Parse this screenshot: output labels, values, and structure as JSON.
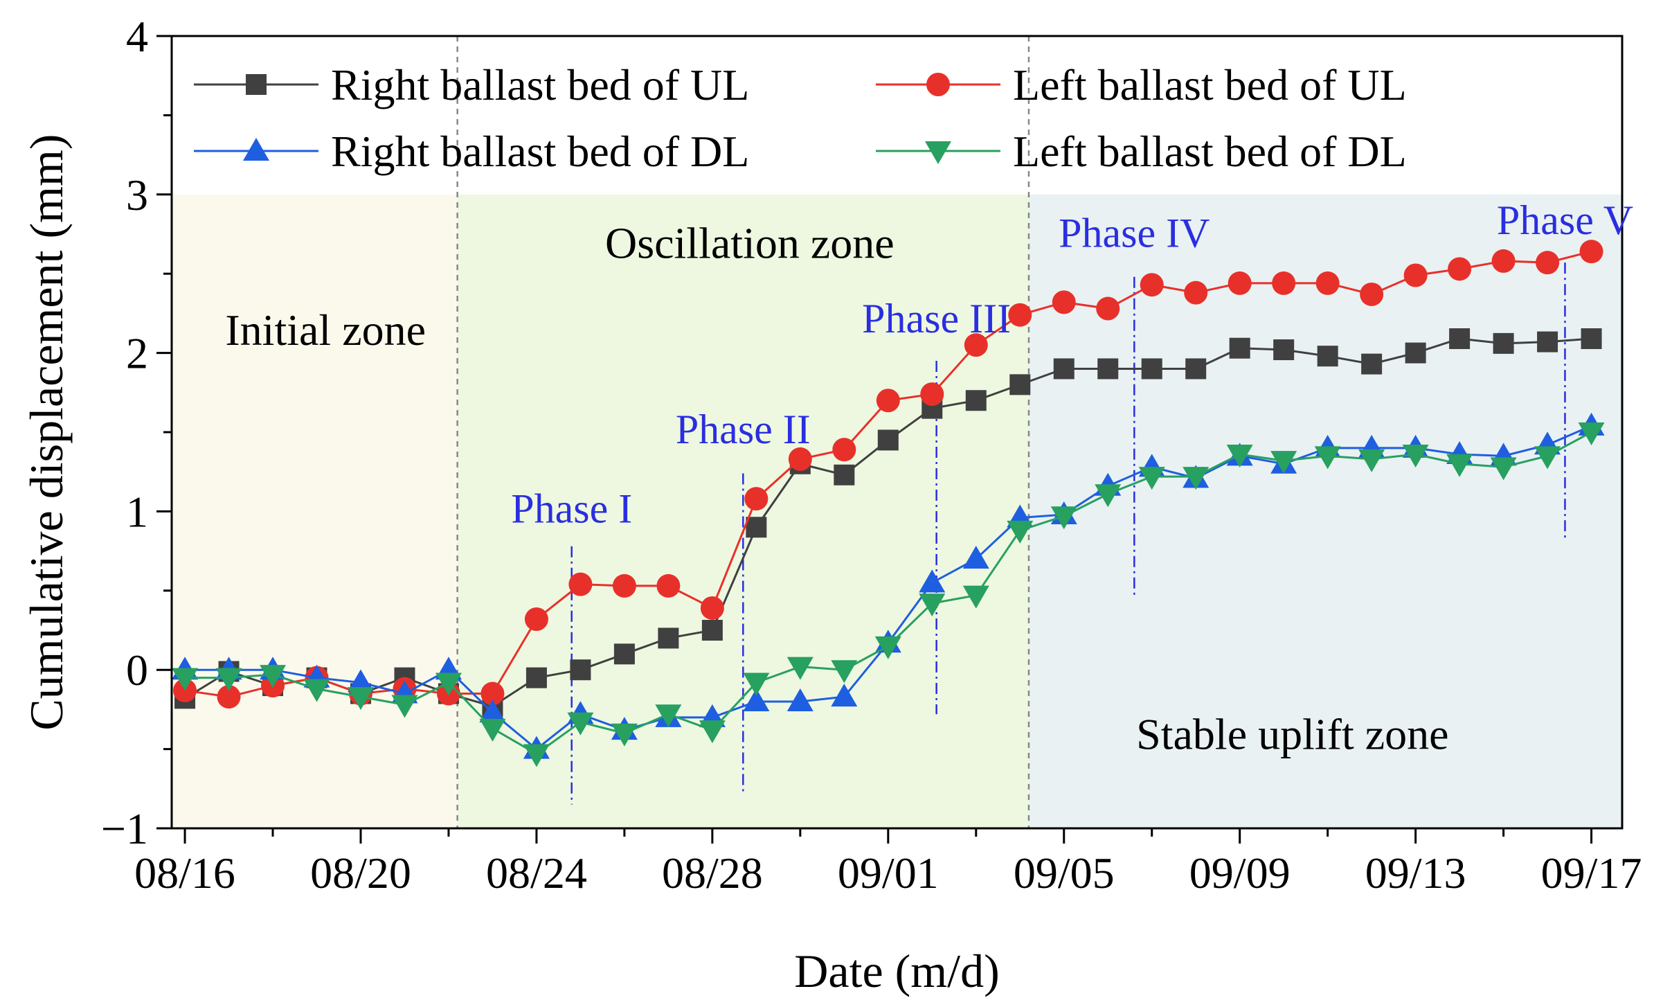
{
  "chart_data": {
    "type": "line",
    "xlabel": "Date (m/d)",
    "ylabel": "Cumulative displacement (mm)",
    "ylim": [
      -1,
      4
    ],
    "xlim": [
      -0.3,
      32.7
    ],
    "x_ticks": [
      {
        "pos": 0,
        "label": "08/16"
      },
      {
        "pos": 4,
        "label": "08/20"
      },
      {
        "pos": 8,
        "label": "08/24"
      },
      {
        "pos": 12,
        "label": "08/28"
      },
      {
        "pos": 16,
        "label": "09/01"
      },
      {
        "pos": 20,
        "label": "09/05"
      },
      {
        "pos": 24,
        "label": "09/09"
      },
      {
        "pos": 28,
        "label": "09/13"
      },
      {
        "pos": 32,
        "label": "09/17"
      }
    ],
    "y_ticks": [
      {
        "pos": -1,
        "label": "−1"
      },
      {
        "pos": 0,
        "label": "0"
      },
      {
        "pos": 1,
        "label": "1"
      },
      {
        "pos": 2,
        "label": "2"
      },
      {
        "pos": 3,
        "label": "3"
      },
      {
        "pos": 4,
        "label": "4"
      }
    ],
    "zones": [
      {
        "label": "Initial zone",
        "x0": -0.3,
        "x1": 6.2,
        "y_top": 3,
        "color": "#fbf9ec",
        "label_x": 3.2,
        "label_y": 2.05
      },
      {
        "label": "Oscillation zone",
        "x0": 6.2,
        "x1": 19.2,
        "y_top": 3,
        "color": "#eef8e0",
        "label_x": 12.85,
        "label_y": 2.6
      },
      {
        "label": "Stable uplift zone",
        "x0": 19.2,
        "x1": 32.7,
        "y_top": 3,
        "color": "#e9f1f3",
        "label_x": 25.2,
        "label_y": -0.5
      }
    ],
    "zone_dividers": [
      6.2,
      19.2
    ],
    "phases": [
      {
        "label": "Phase I",
        "x": 8.8,
        "y_top": 0.78,
        "y_bottom": -0.85,
        "label_x": 8.8,
        "label_y": 0.93
      },
      {
        "label": "Phase II",
        "x": 12.7,
        "y_top": 1.24,
        "y_bottom": -0.78,
        "label_x": 12.7,
        "label_y": 1.43
      },
      {
        "label": "Phase III",
        "x": 17.1,
        "y_top": 1.95,
        "y_bottom": -0.28,
        "label_x": 17.1,
        "label_y": 2.13
      },
      {
        "label": "Phase IV",
        "x": 21.6,
        "y_top": 2.48,
        "y_bottom": 0.47,
        "label_x": 21.6,
        "label_y": 2.67
      },
      {
        "label": "Phase V",
        "x": 31.4,
        "y_top": 2.57,
        "y_bottom": 0.83,
        "label_x": 31.4,
        "label_y": 2.75
      }
    ],
    "phase_color": "#2a2ee0",
    "x": [
      0,
      1,
      2,
      3,
      4,
      5,
      6,
      7,
      8,
      9,
      10,
      11,
      12,
      13,
      14,
      15,
      16,
      17,
      18,
      19,
      20,
      21,
      22,
      23,
      24,
      25,
      26,
      27,
      28,
      29,
      30,
      31,
      32
    ],
    "series": [
      {
        "name": "Right ballast bed of UL",
        "color": "#404040",
        "marker": "square",
        "values": [
          -0.18,
          -0.01,
          -0.1,
          -0.05,
          -0.15,
          -0.05,
          -0.15,
          -0.23,
          -0.05,
          0.0,
          0.1,
          0.2,
          0.25,
          0.9,
          1.3,
          1.23,
          1.45,
          1.65,
          1.7,
          1.8,
          1.9,
          1.9,
          1.9,
          1.9,
          2.03,
          2.02,
          1.98,
          1.93,
          2.0,
          2.09,
          2.06,
          2.07,
          2.09
        ]
      },
      {
        "name": "Left ballast bed of UL",
        "color": "#e8302a",
        "marker": "circle",
        "values": [
          -0.13,
          -0.17,
          -0.1,
          -0.05,
          -0.15,
          -0.12,
          -0.15,
          -0.15,
          0.32,
          0.54,
          0.53,
          0.53,
          0.39,
          1.08,
          1.33,
          1.39,
          1.7,
          1.74,
          2.05,
          2.24,
          2.32,
          2.28,
          2.43,
          2.38,
          2.44,
          2.44,
          2.44,
          2.37,
          2.49,
          2.53,
          2.58,
          2.57,
          2.64
        ]
      },
      {
        "name": "Right ballast bed of DL",
        "color": "#1e5ee0",
        "marker": "triangle-up",
        "values": [
          0.0,
          0.0,
          0.0,
          -0.05,
          -0.08,
          -0.15,
          0.0,
          -0.27,
          -0.5,
          -0.28,
          -0.38,
          -0.3,
          -0.3,
          -0.2,
          -0.2,
          -0.17,
          0.17,
          0.55,
          0.7,
          0.96,
          0.98,
          1.16,
          1.28,
          1.21,
          1.35,
          1.3,
          1.4,
          1.4,
          1.4,
          1.36,
          1.35,
          1.42,
          1.54
        ]
      },
      {
        "name": "Left ballast bed of DL",
        "color": "#27a060",
        "marker": "triangle-down",
        "values": [
          -0.05,
          -0.05,
          -0.03,
          -0.12,
          -0.17,
          -0.22,
          -0.08,
          -0.37,
          -0.53,
          -0.33,
          -0.4,
          -0.28,
          -0.38,
          -0.08,
          0.02,
          0.0,
          0.15,
          0.42,
          0.47,
          0.88,
          0.97,
          1.11,
          1.22,
          1.22,
          1.36,
          1.32,
          1.35,
          1.33,
          1.36,
          1.3,
          1.28,
          1.35,
          1.5
        ]
      }
    ],
    "legend_position": "top"
  }
}
